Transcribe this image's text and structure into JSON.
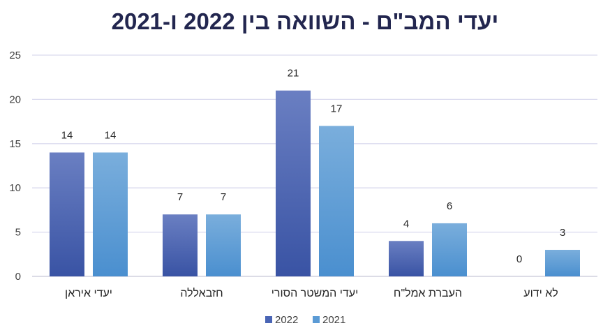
{
  "chart_data": {
    "type": "bar",
    "title": "יעדי המב\"ם - השוואה בין 2022 ו-2021",
    "categories": [
      "יעדי איראן",
      "חזבאללה",
      "יעדי המשטר הסורי",
      "העברת אמל\"ח",
      "לא ידוע"
    ],
    "series": [
      {
        "name": "2022",
        "values": [
          14,
          7,
          21,
          4,
          0
        ]
      },
      {
        "name": "2021",
        "values": [
          14,
          7,
          17,
          6,
          3
        ]
      }
    ],
    "ylim": [
      0,
      25
    ],
    "yticks": [
      "0",
      "5",
      "10",
      "15",
      "20",
      "25"
    ],
    "grid": true,
    "legend": "bottom",
    "colors": {
      "2022": "#4a65b5",
      "2021": "#5b9bd5",
      "grid": "#d9d9ee"
    }
  }
}
